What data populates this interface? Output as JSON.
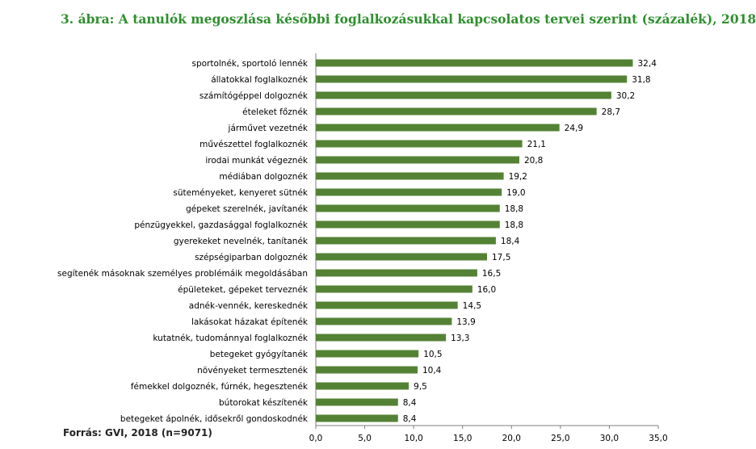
{
  "title": "3. ábra: A tanulók megoszlása későbbi foglalkozásukkal kapcsolatos tervei szerint (százalék), 2018",
  "source": "Forrás: GVI, 2018 (n=9071)",
  "bar_color": "#548235",
  "title_color": "#2f8f2f",
  "chart_data": {
    "type": "bar",
    "orientation": "horizontal",
    "title": "3. ábra: A tanulók megoszlása későbbi foglalkozásukkal kapcsolatos tervei szerint (százalék), 2018",
    "xlabel": "",
    "ylabel": "",
    "xlim": [
      0,
      35
    ],
    "x_ticks": [
      "0,0",
      "5,0",
      "10,0",
      "15,0",
      "20,0",
      "25,0",
      "30,0",
      "35,0"
    ],
    "grid": false,
    "categories": [
      "sportolnék, sportoló lennék",
      "állatokkal foglalkoznék",
      "számítógéppel dolgoznék",
      "ételeket főznék",
      "járművet vezetnék",
      "művészettel foglalkoznék",
      "irodai munkát végeznék",
      "médiában dolgoznék",
      "süteményeket, kenyeret sütnék",
      "gépeket szerelnék, javítanék",
      "pénzügyekkel, gazdasággal foglalkoznék",
      "gyerekeket nevelnék, tanítanék",
      "szépségiparban dolgoznék",
      "segítenék másoknak személyes problémáik megoldásában",
      "épületeket, gépeket terveznék",
      "adnék-vennék, kereskednék",
      "lakásokat házakat építenék",
      "kutatnék, tudománnyal foglalkoznék",
      "betegeket gyógyítanék",
      "növényeket termesztenék",
      "fémekkel dolgoznék, fúrnék, hegesztenék",
      "bútorokat készítenék",
      "betegeket ápolnék, idősekről gondoskodnék"
    ],
    "values": [
      32.4,
      31.8,
      30.2,
      28.7,
      24.9,
      21.1,
      20.8,
      19.2,
      19.0,
      18.8,
      18.8,
      18.4,
      17.5,
      16.5,
      16.0,
      14.5,
      13.9,
      13.3,
      10.5,
      10.4,
      9.5,
      8.4,
      8.4
    ],
    "value_labels": [
      "32,4",
      "31,8",
      "30,2",
      "28,7",
      "24,9",
      "21,1",
      "20,8",
      "19,2",
      "19,0",
      "18,8",
      "18,8",
      "18,4",
      "17,5",
      "16,5",
      "16,0",
      "14,5",
      "13,9",
      "13,3",
      "10,5",
      "10,4",
      "9,5",
      "8,4",
      "8,4"
    ]
  }
}
